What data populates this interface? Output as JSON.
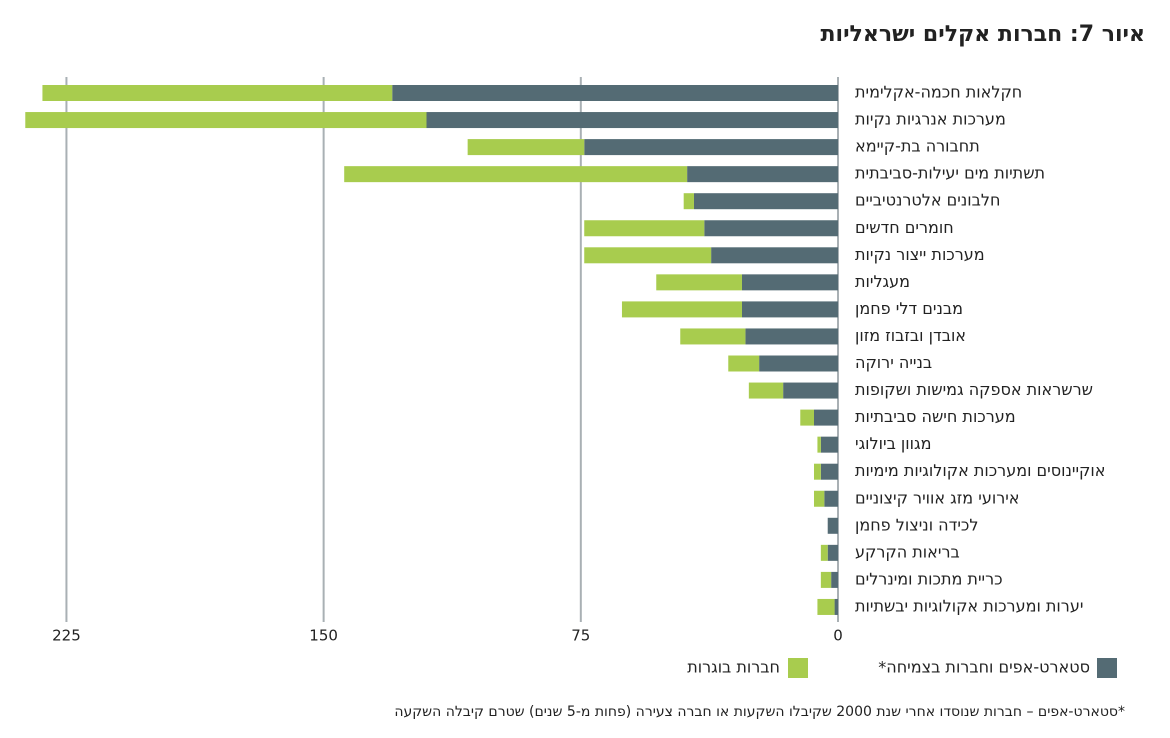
{
  "chart_data": {
    "type": "barh_stacked",
    "title": "איור 7: חברות אקלים ישראליות",
    "categories": [
      "חקלאות חכמה-אקלימית",
      "מערכות אנרגיות נקיות",
      "תחבורה בת-קיימא",
      "תשתיות מים יעילות-סביבתית",
      "חלבונים אלטרנטיביים",
      "חומרים חדשים",
      "מערכות ייצור נקיות",
      "מעגליות",
      "מבנים דלי פחמן",
      "אובדן ובזבוז מזון",
      "בנייה ירוקה",
      "שרשראות אספקה גמישות ושקופות",
      "מערכות חישה סביבתיות",
      "מגוון ביולוגי",
      "אוקיינוסים ומערכות אקולוגיות מימיות",
      "אירועי מזג אוויר קיצוניים",
      "לכידה וניצול פחמן",
      "בריאות הקרקע",
      "כריית מתכות ומינרלים",
      "יערות ומערכות אקולוגיות יבשתיות"
    ],
    "series": [
      {
        "name": "סטארט-אפים וחברות בצמיחה*",
        "color": "#546b74",
        "values": [
          130,
          120,
          74,
          44,
          42,
          39,
          37,
          28,
          28,
          27,
          23,
          16,
          7,
          5,
          5,
          4,
          3,
          3,
          2,
          1
        ]
      },
      {
        "name": "חברות בוגרות",
        "color": "#a8cc4e",
        "values": [
          102,
          117,
          34,
          100,
          3,
          35,
          37,
          25,
          35,
          19,
          9,
          10,
          4,
          1,
          2,
          3,
          0,
          2,
          3,
          5
        ]
      }
    ],
    "xlim": [
      0,
      240
    ],
    "xticks": [
      0,
      75,
      150,
      225
    ],
    "x_reversed": true,
    "grid": true,
    "footnote": "*סטארט-אפים – חברות שנוסדו אחרי שנת 2000 שקיבלו השקעות או חברה צעירה (פחות מ-5 שנים) שטרם קיבלה השקעה"
  }
}
